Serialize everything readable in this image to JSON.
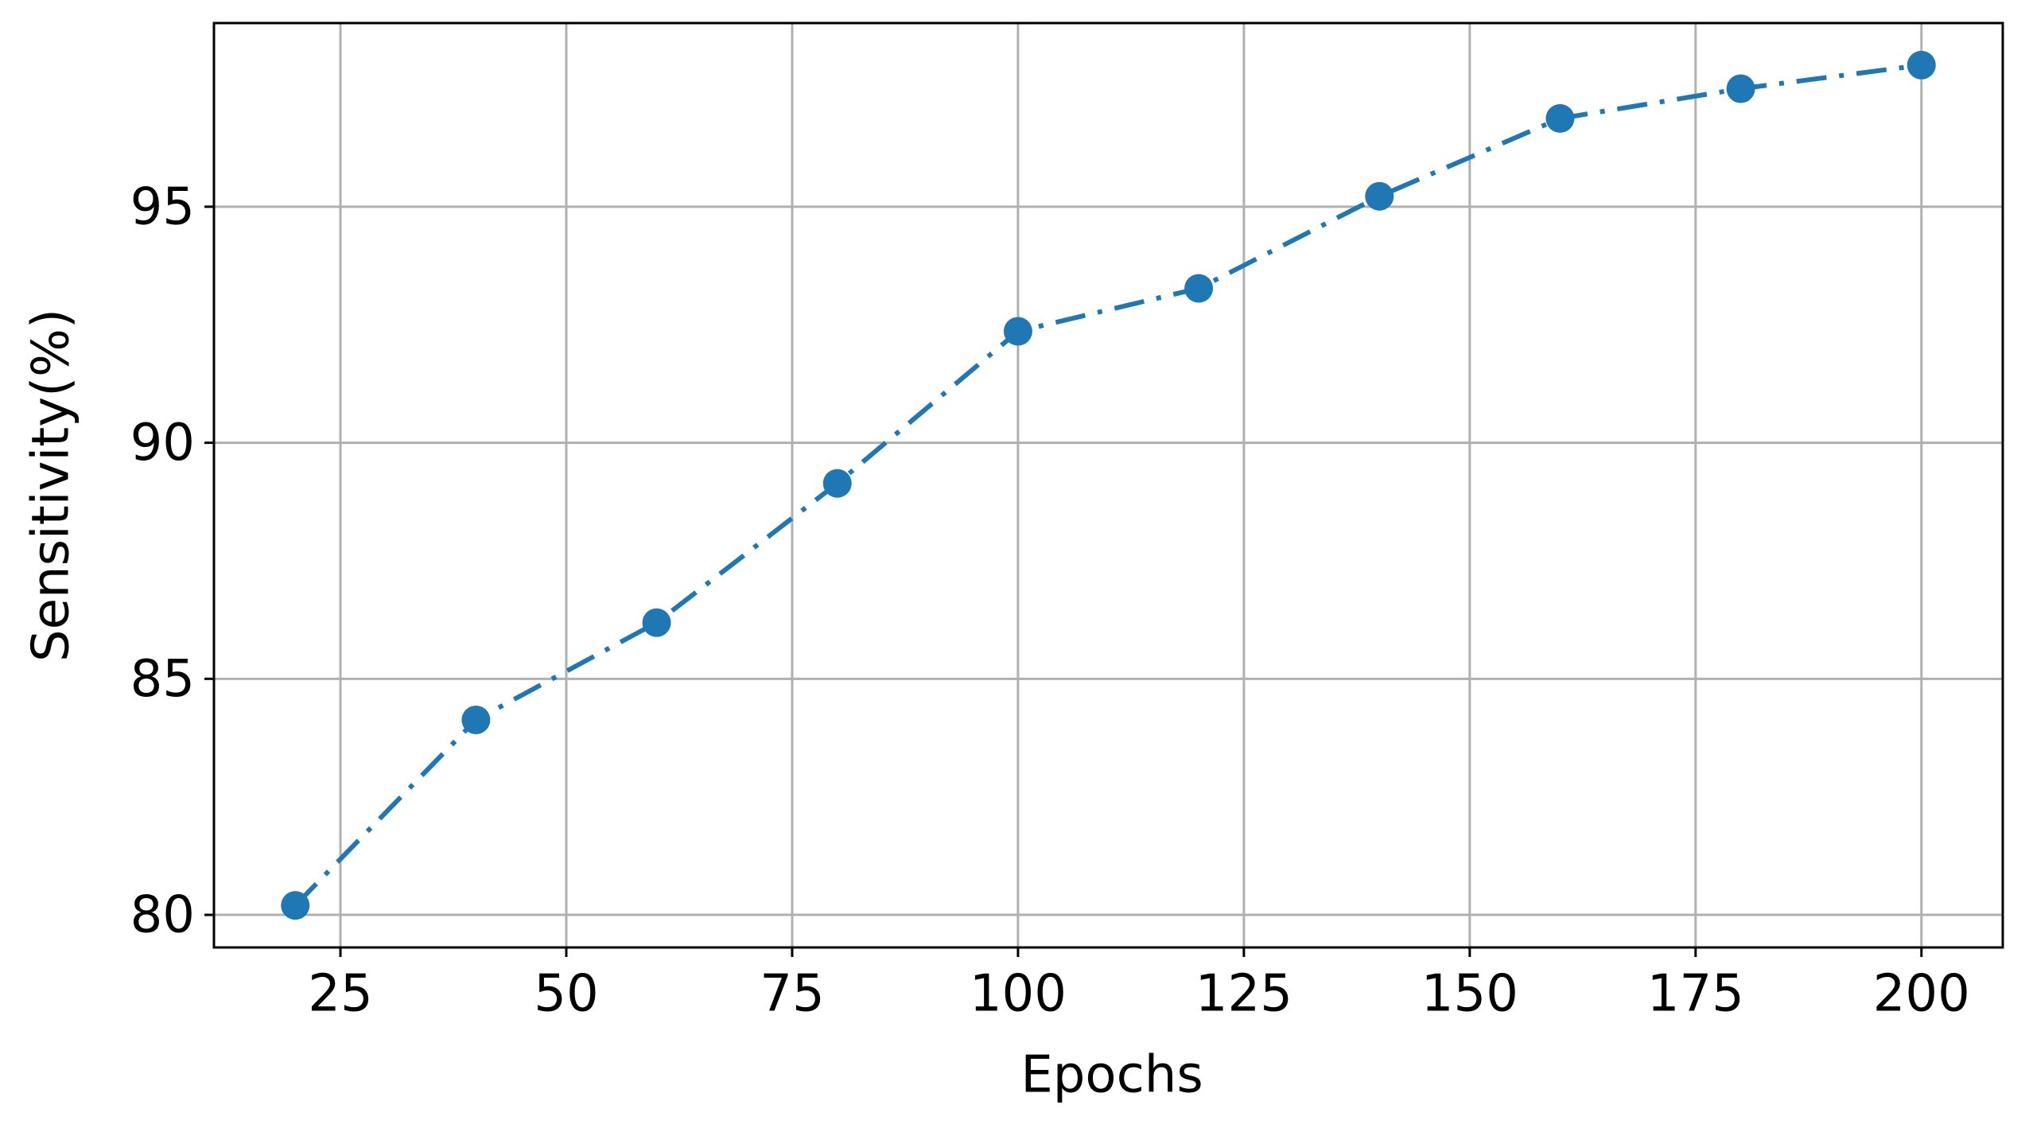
{
  "chart_data": {
    "type": "line",
    "x_label": "Epochs",
    "y_label": "Sensitivity(%)",
    "x": [
      20,
      40,
      60,
      80,
      100,
      120,
      140,
      160,
      180,
      200
    ],
    "series": [
      {
        "color": "#1f77b4",
        "values": [
          80.2,
          84.13,
          86.19,
          89.14,
          92.36,
          93.27,
          95.22,
          96.87,
          97.5,
          98.0
        ]
      }
    ],
    "xlim": [
      11,
      209
    ],
    "xticks": [
      25,
      50,
      75,
      100,
      125,
      150,
      175,
      200
    ],
    "ylim": [
      79.31,
      98.89
    ],
    "yticks": [
      80,
      85,
      90,
      95
    ],
    "grid": true,
    "line_style": "dashdot",
    "marker": "circle"
  }
}
